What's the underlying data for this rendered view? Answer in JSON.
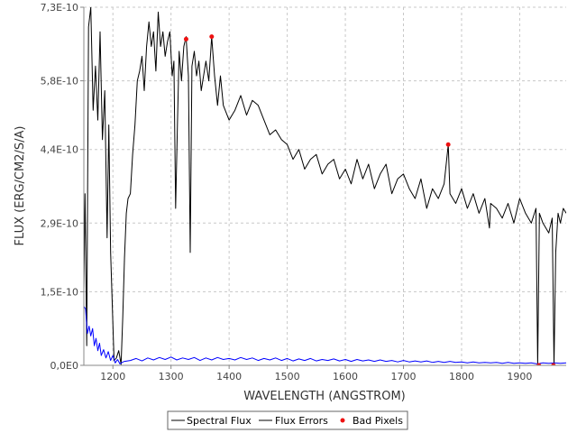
{
  "chart_data": {
    "type": "line",
    "title": "",
    "xlabel": "WAVELENGTH (ANGSTROM)",
    "ylabel": "FLUX (ERG/CM2/S/A)",
    "xlim": [
      1150,
      1980
    ],
    "ylim": [
      0,
      7.3e-10
    ],
    "x_ticks": [
      1200,
      1300,
      1400,
      1500,
      1600,
      1700,
      1800,
      1900
    ],
    "x_tick_labels": [
      "1200",
      "1300",
      "1400",
      "1500",
      "1600",
      "1700",
      "1800",
      "1900"
    ],
    "y_ticks": [
      0,
      1.5e-10,
      2.9e-10,
      4.4e-10,
      5.8e-10,
      7.3e-10
    ],
    "y_tick_labels": [
      "0,0E0",
      "1,5E-10",
      "2,9E-10",
      "4,4E-10",
      "5,8E-10",
      "7,3E-10"
    ],
    "grid": true,
    "legend_position": "bottom",
    "series": [
      {
        "name": "Spectral Flux",
        "color": "#000000",
        "x": [
          1150,
          1152,
          1155,
          1158,
          1162,
          1166,
          1170,
          1174,
          1178,
          1182,
          1186,
          1190,
          1193,
          1196,
          1199,
          1202,
          1206,
          1210,
          1214,
          1217,
          1220,
          1223,
          1226,
          1230,
          1234,
          1238,
          1242,
          1246,
          1250,
          1254,
          1258,
          1262,
          1266,
          1270,
          1274,
          1278,
          1282,
          1286,
          1290,
          1294,
          1298,
          1302,
          1305,
          1308,
          1311,
          1314,
          1318,
          1322,
          1326,
          1330,
          1333,
          1336,
          1340,
          1344,
          1348,
          1352,
          1356,
          1360,
          1365,
          1370,
          1375,
          1380,
          1385,
          1390,
          1400,
          1410,
          1420,
          1430,
          1440,
          1450,
          1460,
          1470,
          1480,
          1490,
          1500,
          1510,
          1520,
          1530,
          1540,
          1550,
          1560,
          1570,
          1580,
          1590,
          1600,
          1610,
          1620,
          1630,
          1640,
          1650,
          1660,
          1670,
          1680,
          1690,
          1700,
          1710,
          1720,
          1730,
          1740,
          1750,
          1760,
          1770,
          1777,
          1780,
          1790,
          1800,
          1810,
          1820,
          1830,
          1840,
          1848,
          1850,
          1860,
          1870,
          1880,
          1890,
          1900,
          1910,
          1920,
          1928,
          1931,
          1934,
          1940,
          1950,
          1956,
          1959,
          1962,
          1966,
          1970,
          1975,
          1980
        ],
        "values": [
          1.5e-10,
          3.5e-10,
          4e-11,
          6.9e-10,
          7.3e-10,
          5.2e-10,
          6.1e-10,
          5e-10,
          6.8e-10,
          4.6e-10,
          5.6e-10,
          2.6e-10,
          4.9e-10,
          2.3e-10,
          1.2e-10,
          1e-11,
          1.5e-11,
          3e-11,
          2e-12,
          1e-10,
          2.2e-10,
          3.1e-10,
          3.4e-10,
          3.5e-10,
          4.3e-10,
          4.9e-10,
          5.8e-10,
          6e-10,
          6.3e-10,
          5.6e-10,
          6.5e-10,
          7e-10,
          6.5e-10,
          6.8e-10,
          6e-10,
          7.2e-10,
          6.5e-10,
          6.8e-10,
          6.3e-10,
          6.6e-10,
          6.8e-10,
          5.9e-10,
          6.2e-10,
          3.2e-10,
          4.9e-10,
          6.4e-10,
          5.8e-10,
          6.5e-10,
          6.7e-10,
          5.9e-10,
          2.3e-10,
          6.1e-10,
          6.4e-10,
          5.9e-10,
          6.2e-10,
          5.6e-10,
          5.9e-10,
          6.2e-10,
          5.8e-10,
          6.7e-10,
          5.9e-10,
          5.3e-10,
          5.9e-10,
          5.3e-10,
          5e-10,
          5.2e-10,
          5.5e-10,
          5.1e-10,
          5.4e-10,
          5.3e-10,
          5e-10,
          4.7e-10,
          4.8e-10,
          4.6e-10,
          4.5e-10,
          4.2e-10,
          4.4e-10,
          4e-10,
          4.2e-10,
          4.3e-10,
          3.9e-10,
          4.1e-10,
          4.2e-10,
          3.8e-10,
          4e-10,
          3.7e-10,
          4.2e-10,
          3.8e-10,
          4.1e-10,
          3.6e-10,
          3.9e-10,
          4.1e-10,
          3.5e-10,
          3.8e-10,
          3.9e-10,
          3.6e-10,
          3.4e-10,
          3.8e-10,
          3.2e-10,
          3.6e-10,
          3.4e-10,
          3.7e-10,
          4.5e-10,
          3.5e-10,
          3.3e-10,
          3.6e-10,
          3.2e-10,
          3.5e-10,
          3.1e-10,
          3.4e-10,
          2.8e-10,
          3.3e-10,
          3.2e-10,
          3e-10,
          3.3e-10,
          2.9e-10,
          3.4e-10,
          3.1e-10,
          2.9e-10,
          3.2e-10,
          0.0,
          3.1e-10,
          2.9e-10,
          2.7e-10,
          3e-10,
          0.0,
          2.3e-10,
          3.1e-10,
          2.9e-10,
          3.2e-10,
          3.1e-10
        ]
      },
      {
        "name": "Flux Errors",
        "color": "#0000ff",
        "x": [
          1150,
          1153,
          1156,
          1159,
          1162,
          1165,
          1168,
          1171,
          1174,
          1177,
          1180,
          1184,
          1188,
          1192,
          1196,
          1200,
          1204,
          1208,
          1212,
          1216,
          1220,
          1230,
          1240,
          1250,
          1260,
          1270,
          1280,
          1290,
          1300,
          1310,
          1320,
          1330,
          1340,
          1350,
          1360,
          1370,
          1380,
          1390,
          1400,
          1410,
          1420,
          1430,
          1440,
          1450,
          1460,
          1470,
          1480,
          1490,
          1500,
          1510,
          1520,
          1530,
          1540,
          1550,
          1560,
          1570,
          1580,
          1590,
          1600,
          1610,
          1620,
          1630,
          1640,
          1650,
          1660,
          1670,
          1680,
          1690,
          1700,
          1710,
          1720,
          1730,
          1740,
          1750,
          1760,
          1770,
          1780,
          1790,
          1800,
          1810,
          1820,
          1830,
          1840,
          1850,
          1860,
          1870,
          1880,
          1890,
          1900,
          1910,
          1920,
          1930,
          1940,
          1950,
          1960,
          1970,
          1980
        ],
        "values": [
          1.2e-10,
          1.15e-10,
          6.5e-11,
          8e-11,
          6e-11,
          7.5e-11,
          4e-11,
          5.5e-11,
          3e-11,
          4.5e-11,
          2e-11,
          3.2e-11,
          1.5e-11,
          2.8e-11,
          1e-11,
          2e-11,
          5e-12,
          1.2e-11,
          3e-12,
          6e-12,
          8e-12,
          1e-11,
          1.4e-11,
          9e-12,
          1.5e-11,
          1.1e-11,
          1.6e-11,
          1.2e-11,
          1.7e-11,
          1.1e-11,
          1.5e-11,
          1.2e-11,
          1.6e-11,
          1e-11,
          1.5e-11,
          1.1e-11,
          1.6e-11,
          1.2e-11,
          1.4e-11,
          1.1e-11,
          1.6e-11,
          1.2e-11,
          1.5e-11,
          1e-11,
          1.4e-11,
          1.1e-11,
          1.5e-11,
          1e-11,
          1.4e-11,
          9e-12,
          1.3e-11,
          1e-11,
          1.4e-11,
          9e-12,
          1.2e-11,
          1e-11,
          1.3e-11,
          9e-12,
          1.2e-11,
          8e-12,
          1.2e-11,
          9e-12,
          1.1e-11,
          8e-12,
          1.1e-11,
          8e-12,
          1e-11,
          7e-12,
          1e-11,
          7e-12,
          9e-12,
          7e-12,
          9e-12,
          6e-12,
          8e-12,
          6e-12,
          8e-12,
          6e-12,
          7e-12,
          5e-12,
          7e-12,
          5e-12,
          6e-12,
          5e-12,
          6e-12,
          4e-12,
          6e-12,
          4e-12,
          5e-12,
          4e-12,
          5e-12,
          3e-12,
          5e-12,
          4e-12,
          5e-12,
          4e-12,
          5e-12
        ]
      },
      {
        "name": "Bad Pixels",
        "color": "#ee1111",
        "marker": "circle",
        "x": [
          1326,
          1370,
          1777,
          1933,
          1958
        ],
        "values": [
          6.65e-10,
          6.7e-10,
          4.5e-10,
          0.0,
          0.0
        ]
      }
    ]
  }
}
